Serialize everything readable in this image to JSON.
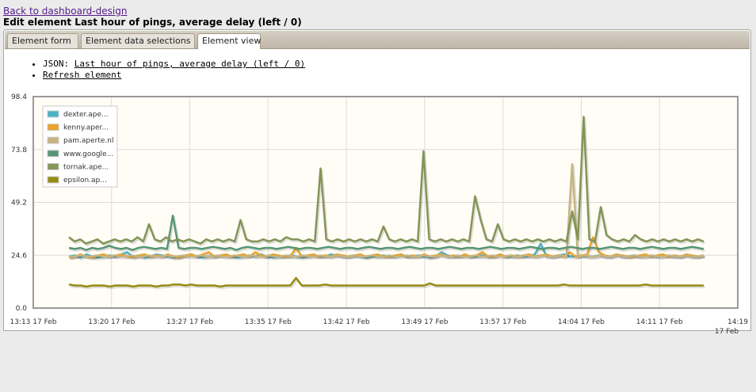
{
  "page": {
    "back_link": "Back to dashboard-design",
    "title": "Edit element Last hour of pings, average delay (left / 0)"
  },
  "tabs": [
    {
      "label": "Element form",
      "active": false
    },
    {
      "label": "Element data selections",
      "active": false
    },
    {
      "label": "Element view",
      "active": true
    }
  ],
  "links": {
    "json_prefix": "JSON:",
    "json_link": "Last hour of pings, average delay (left / 0)",
    "refresh": "Refresh element"
  },
  "chart_data": {
    "type": "line",
    "title": "",
    "xlabel": "",
    "ylabel": "",
    "ylim": [
      0,
      98.4
    ],
    "yticks": [
      "98.4",
      "73.8",
      "49.2",
      "24.6",
      "0.0"
    ],
    "xticks": [
      "13:13 17 Feb",
      "13:20 17 Feb",
      "13:27 17 Feb",
      "13:35 17 Feb",
      "13:42 17 Feb",
      "13:49 17 Feb",
      "13:57 17 Feb",
      "14:04 17 Feb",
      "14:11 17 Feb",
      "14:19 17 Feb"
    ],
    "grid": true,
    "legend_position": "top-left",
    "x_start": "13:19",
    "x_step_minutes": 0.5,
    "series": [
      {
        "name": "dexter.ape...",
        "color": "#4bb2c5",
        "values": [
          24,
          24.5,
          23.5,
          25,
          24,
          23.5,
          24,
          24.5,
          24,
          25,
          26,
          24,
          24.5,
          23.5,
          24,
          25,
          24.5,
          24,
          23.5,
          24,
          24.5,
          25,
          24,
          23.5,
          24,
          24,
          24.5,
          24,
          24,
          23.5,
          24,
          24.5,
          24,
          25,
          24,
          23.5,
          24,
          24,
          24.5,
          24,
          23.5,
          24,
          24.5,
          24,
          24,
          25,
          24.5,
          24,
          24,
          24.5,
          24,
          23.5,
          24,
          24,
          24.5,
          24,
          24,
          25,
          24,
          24,
          24.5,
          24,
          23.5,
          24,
          26,
          24.5,
          24,
          24,
          24.5,
          24,
          24,
          24.5,
          24,
          24,
          25,
          24,
          24,
          24.5,
          24,
          24,
          25,
          30,
          24,
          24,
          24.5,
          25,
          24,
          24,
          24.5,
          24,
          24,
          24.5,
          24,
          24,
          25,
          24,
          24,
          24.5,
          24,
          24,
          24.5,
          24,
          24,
          24.5,
          24,
          24,
          24.5,
          24,
          24,
          24.5
        ]
      },
      {
        "name": "kenny.aper...",
        "color": "#eaa228",
        "values": [
          23.5,
          24,
          25,
          24,
          23.5,
          24.5,
          25,
          24,
          24.5,
          25,
          24,
          23.5,
          24.5,
          25,
          24,
          24.5,
          24,
          25,
          24,
          23.5,
          24.5,
          25,
          24,
          25,
          26,
          24,
          24.5,
          25,
          24,
          24.5,
          25,
          24,
          26,
          24.5,
          24,
          25,
          24.5,
          24,
          24,
          28,
          24,
          24.5,
          25,
          24,
          24.5,
          24,
          25,
          24.5,
          24,
          24.5,
          25,
          24,
          24.5,
          25,
          24,
          24,
          24.5,
          25,
          24,
          24.5,
          24,
          25,
          24,
          24.5,
          25,
          24,
          24.5,
          24,
          25,
          24,
          24.5,
          26,
          24,
          24,
          25,
          24,
          24.5,
          24,
          24.5,
          25,
          24,
          24.5,
          25,
          24,
          24.5,
          24,
          26,
          24,
          24.5,
          25,
          33,
          26,
          24.5,
          24,
          25,
          24.5,
          24,
          24,
          24.5,
          25,
          24,
          24.5,
          25,
          24,
          24.5,
          24,
          25,
          24.5,
          24,
          24.5
        ]
      },
      {
        "name": "pam.aperte.nl",
        "color": "#c5b47f",
        "values": [
          24,
          24,
          24.5,
          24,
          24,
          24.5,
          24,
          24,
          24.5,
          24,
          24,
          24.5,
          24,
          24,
          24.5,
          24,
          24,
          24.5,
          24,
          24,
          24.5,
          24,
          24,
          24.5,
          24,
          24,
          24.5,
          24,
          24,
          24.5,
          24,
          24,
          24.5,
          24,
          24,
          24.5,
          24,
          24,
          24.5,
          24,
          24,
          24.5,
          24,
          24,
          24.5,
          24,
          24,
          24.5,
          24,
          24,
          24.5,
          24,
          24,
          24.5,
          24,
          24,
          24.5,
          24,
          24,
          24.5,
          24,
          24,
          24.5,
          24,
          24,
          24.5,
          24,
          24,
          24.5,
          24,
          24,
          24.5,
          24,
          24,
          24.5,
          24,
          24,
          24.5,
          24,
          24,
          24.5,
          24,
          24,
          24.5,
          24,
          24,
          24.5,
          24,
          67,
          24,
          24.5,
          24,
          24,
          24.5,
          24,
          24,
          24.5,
          24,
          24,
          24.5,
          24,
          24,
          24.5,
          24,
          24,
          24.5,
          24,
          24,
          24.5,
          24,
          24,
          24.5
        ]
      },
      {
        "name": "www.google...",
        "color": "#579575",
        "values": [
          28,
          27.5,
          28,
          27,
          28,
          27.5,
          28,
          29,
          28,
          27.5,
          28,
          27,
          28,
          28.5,
          28,
          27.5,
          28,
          27.5,
          43,
          28,
          27.5,
          28,
          28,
          27.5,
          28,
          28.5,
          28,
          27.5,
          28,
          27,
          28,
          28.5,
          28,
          27.5,
          28,
          28,
          27.5,
          28,
          28.5,
          28,
          27.5,
          28,
          28,
          27.5,
          28,
          28.5,
          28,
          27.5,
          28,
          28,
          27.5,
          28,
          28.5,
          28,
          27.5,
          28,
          28,
          27.5,
          28,
          28.5,
          28,
          27.5,
          28,
          28,
          27.5,
          28,
          28.5,
          28,
          27.5,
          28,
          28,
          27.5,
          28,
          28.5,
          28,
          27.5,
          28,
          28,
          27.5,
          28,
          28.5,
          28,
          27.5,
          28,
          28,
          27.5,
          28,
          28.5,
          28,
          27.5,
          28,
          28,
          27.5,
          28,
          28.5,
          28,
          27.5,
          28,
          28,
          27.5,
          28,
          28.5,
          28,
          27.5,
          28,
          28,
          27.5,
          28,
          28.5,
          28,
          27.5
        ]
      },
      {
        "name": "tornak.ape...",
        "color": "#839557",
        "values": [
          33,
          31,
          32,
          30,
          31,
          32,
          30,
          31,
          32,
          31,
          32,
          31,
          33,
          31,
          39,
          32,
          31,
          33,
          31,
          32,
          31,
          32,
          31,
          30,
          32,
          31,
          32,
          31,
          32,
          31,
          41,
          32,
          31,
          31,
          32,
          31,
          32,
          31,
          33,
          32,
          32,
          31,
          32,
          31,
          65,
          32,
          31,
          32,
          31,
          32,
          31,
          32,
          31,
          32,
          31,
          38,
          32,
          31,
          32,
          31,
          32,
          31,
          73,
          32,
          31,
          32,
          31,
          32,
          31,
          32,
          31,
          52,
          41,
          32,
          31,
          39,
          32,
          31,
          32,
          31,
          32,
          31,
          32,
          31,
          32,
          31,
          32,
          31,
          45,
          32,
          89,
          32,
          31,
          47,
          34,
          32,
          31,
          32,
          31,
          34,
          32,
          31,
          32,
          31,
          32,
          31,
          32,
          31,
          32,
          31,
          32,
          31
        ]
      },
      {
        "name": "epsilon.ap...",
        "color": "#958c12",
        "values": [
          11,
          10.5,
          10.5,
          10,
          10.5,
          10.5,
          10.5,
          10,
          10.5,
          10.5,
          10.5,
          10,
          10.5,
          10.5,
          10.5,
          10,
          10.5,
          10.5,
          11,
          11,
          10.5,
          11,
          10.5,
          10.5,
          10.5,
          10.5,
          10,
          10.5,
          10.5,
          10.5,
          10.5,
          10.5,
          10.5,
          10.5,
          10.5,
          10.5,
          10.5,
          10.5,
          10.5,
          14,
          10.5,
          10.5,
          10.5,
          10.5,
          11,
          10.5,
          10.5,
          10.5,
          10.5,
          10.5,
          10.5,
          10.5,
          10.5,
          10.5,
          10.5,
          10.5,
          10.5,
          10.5,
          10.5,
          10.5,
          10.5,
          10.5,
          11.5,
          10.5,
          10.5,
          10.5,
          10.5,
          10.5,
          10.5,
          10.5,
          10.5,
          10.5,
          10.5,
          10.5,
          10.5,
          10.5,
          10.5,
          10.5,
          10.5,
          10.5,
          10.5,
          10.5,
          10.5,
          10.5,
          10.5,
          11,
          10.5,
          10.5,
          10.5,
          10.5,
          10.5,
          10.5,
          10.5,
          10.5,
          10.5,
          10.5,
          10.5,
          10.5,
          10.5,
          11,
          10.5,
          10.5,
          10.5,
          10.5,
          10.5,
          10.5,
          10.5,
          10.5,
          10.5,
          10.5
        ]
      }
    ]
  }
}
